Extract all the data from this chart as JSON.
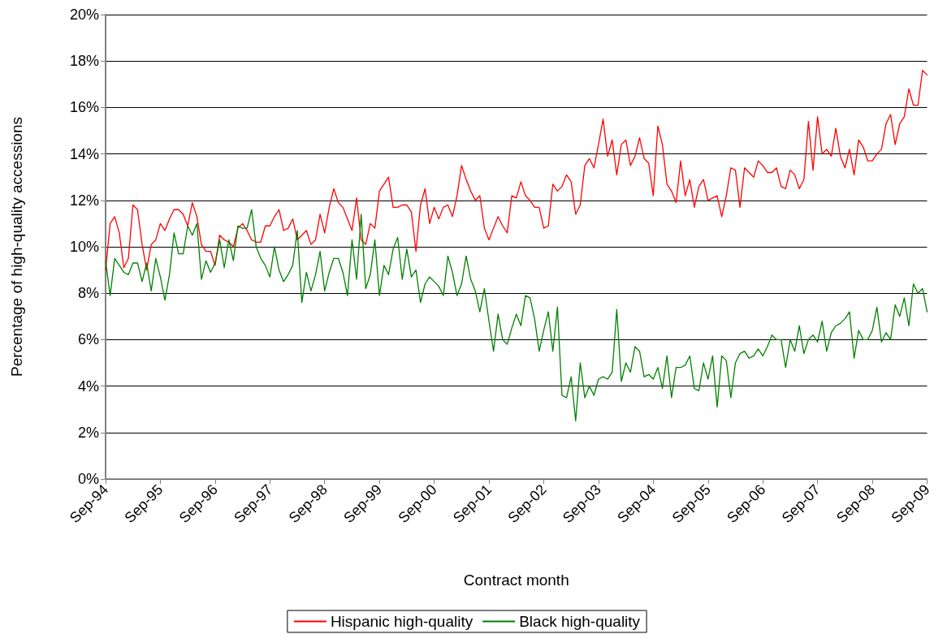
{
  "chart_data": {
    "type": "line",
    "xlabel": "Contract month",
    "ylabel": "Percentage of high-quality accessions",
    "categories": [
      "Sep-94",
      null,
      null,
      null,
      null,
      null,
      null,
      null,
      null,
      null,
      null,
      null,
      "Sep-95",
      null,
      null,
      null,
      null,
      null,
      null,
      null,
      null,
      null,
      null,
      null,
      "Sep-96",
      null,
      null,
      null,
      null,
      null,
      null,
      null,
      null,
      null,
      null,
      null,
      "Sep-97",
      null,
      null,
      null,
      null,
      null,
      null,
      null,
      null,
      null,
      null,
      null,
      "Sep-98",
      null,
      null,
      null,
      null,
      null,
      null,
      null,
      null,
      null,
      null,
      null,
      "Sep-99",
      null,
      null,
      null,
      null,
      null,
      null,
      null,
      null,
      null,
      null,
      null,
      "Sep-00",
      null,
      null,
      null,
      null,
      null,
      null,
      null,
      null,
      null,
      null,
      null,
      "Sep-01",
      null,
      null,
      null,
      null,
      null,
      null,
      null,
      null,
      null,
      null,
      null,
      "Sep-02",
      null,
      null,
      null,
      null,
      null,
      null,
      null,
      null,
      null,
      null,
      null,
      "Sep-03",
      null,
      null,
      null,
      null,
      null,
      null,
      null,
      null,
      null,
      null,
      null,
      "Sep-04",
      null,
      null,
      null,
      null,
      null,
      null,
      null,
      null,
      null,
      null,
      null,
      "Sep-05",
      null,
      null,
      null,
      null,
      null,
      null,
      null,
      null,
      null,
      null,
      null,
      "Sep-06",
      null,
      null,
      null,
      null,
      null,
      null,
      null,
      null,
      null,
      null,
      null,
      "Sep-07",
      null,
      null,
      null,
      null,
      null,
      null,
      null,
      null,
      null,
      null,
      null,
      "Sep-08",
      null,
      null,
      null,
      null,
      null,
      null,
      null,
      null,
      null,
      null,
      null,
      "Sep-09"
    ],
    "series": [
      {
        "name": "Hispanic high-quality",
        "color": "#ff0000",
        "values": [
          9.0,
          11.0,
          11.3,
          10.6,
          9.1,
          9.5,
          11.8,
          11.6,
          10.1,
          9.0,
          10.1,
          10.3,
          11.0,
          10.7,
          11.2,
          11.6,
          11.6,
          11.4,
          10.9,
          11.9,
          11.3,
          10.1,
          9.8,
          9.8,
          9.2,
          10.5,
          10.3,
          10.2,
          10.0,
          10.8,
          11.0,
          10.7,
          10.3,
          10.2,
          10.2,
          10.9,
          10.9,
          11.3,
          11.6,
          10.7,
          10.8,
          11.2,
          10.3,
          10.5,
          10.7,
          10.1,
          10.3,
          11.4,
          10.6,
          11.7,
          12.5,
          11.9,
          11.7,
          11.2,
          10.7,
          12.1,
          10.3,
          10.1,
          11.0,
          10.8,
          12.4,
          12.7,
          13.0,
          11.7,
          11.7,
          11.8,
          11.8,
          11.5,
          9.8,
          11.8,
          12.5,
          11.0,
          11.7,
          11.2,
          11.7,
          11.8,
          11.3,
          12.2,
          13.5,
          12.9,
          12.4,
          12.0,
          12.2,
          10.8,
          10.3,
          10.8,
          11.3,
          10.9,
          10.6,
          12.2,
          12.1,
          12.8,
          12.2,
          12.0,
          11.7,
          11.7,
          10.8,
          10.9,
          12.7,
          12.4,
          12.6,
          13.1,
          12.8,
          11.4,
          11.8,
          13.5,
          13.8,
          13.4,
          14.4,
          15.5,
          13.9,
          14.6,
          13.1,
          14.4,
          14.6,
          13.5,
          13.9,
          14.7,
          13.8,
          13.6,
          12.2,
          15.2,
          14.4,
          12.7,
          12.4,
          11.9,
          13.7,
          12.2,
          12.9,
          11.7,
          12.6,
          12.9,
          12.0,
          12.1,
          12.2,
          11.3,
          12.2,
          13.4,
          13.3,
          11.7,
          13.4,
          13.2,
          13.0,
          13.7,
          13.5,
          13.2,
          13.2,
          13.4,
          12.6,
          12.5,
          13.3,
          13.1,
          12.5,
          12.9,
          15.4,
          13.3,
          15.6,
          14.0,
          14.2,
          13.9,
          15.1,
          13.9,
          13.4,
          14.2,
          13.1,
          14.6,
          14.3,
          13.7,
          13.7,
          14.0,
          14.2,
          15.3,
          15.7,
          14.4,
          15.3,
          15.6,
          16.8,
          16.1,
          16.1,
          17.6,
          17.4
        ]
      },
      {
        "name": "Black high-quality",
        "color": "#008000",
        "values": [
          9.4,
          7.9,
          9.5,
          9.2,
          8.9,
          8.8,
          9.3,
          9.3,
          8.5,
          9.3,
          8.1,
          9.5,
          8.7,
          7.7,
          8.8,
          10.6,
          9.7,
          9.7,
          10.9,
          10.5,
          11.0,
          8.6,
          9.4,
          8.9,
          9.3,
          10.3,
          9.1,
          10.3,
          9.4,
          10.9,
          10.8,
          10.8,
          11.6,
          10.0,
          9.5,
          9.2,
          8.7,
          10.0,
          9.0,
          8.5,
          8.8,
          9.2,
          10.7,
          7.6,
          8.9,
          8.1,
          8.8,
          9.8,
          8.1,
          8.9,
          9.5,
          9.5,
          8.9,
          7.9,
          10.3,
          8.6,
          11.4,
          8.2,
          8.8,
          10.3,
          7.9,
          9.2,
          8.8,
          9.9,
          10.4,
          8.6,
          9.9,
          8.7,
          9.0,
          7.6,
          8.4,
          8.7,
          8.5,
          8.3,
          7.9,
          9.6,
          8.9,
          7.9,
          8.4,
          9.6,
          8.6,
          8.1,
          7.2,
          8.2,
          6.8,
          5.5,
          7.1,
          6.0,
          5.8,
          6.5,
          7.1,
          6.6,
          7.9,
          7.8,
          6.9,
          5.5,
          6.4,
          7.2,
          5.5,
          7.4,
          3.6,
          3.5,
          4.4,
          2.5,
          5.0,
          3.5,
          4.0,
          3.6,
          4.3,
          4.4,
          4.3,
          4.6,
          7.3,
          4.2,
          5.0,
          4.6,
          5.7,
          5.5,
          4.4,
          4.5,
          4.3,
          4.8,
          3.9,
          5.3,
          3.5,
          4.8,
          4.8,
          4.9,
          5.3,
          3.9,
          3.8,
          5.0,
          4.3,
          5.3,
          3.1,
          5.3,
          5.1,
          3.5,
          5.0,
          5.4,
          5.5,
          5.2,
          5.3,
          5.6,
          5.3,
          5.7,
          6.2,
          6.0,
          6.0,
          4.8,
          6.0,
          5.5,
          6.6,
          5.4,
          6.0,
          6.2,
          5.9,
          6.8,
          5.5,
          6.3,
          6.6,
          6.7,
          6.9,
          7.2,
          5.2,
          6.4,
          6.0,
          6.0,
          6.4,
          7.4,
          5.9,
          6.3,
          6.0,
          7.5,
          7.0,
          7.8,
          6.6,
          8.4,
          8.0,
          8.2,
          7.2
        ]
      }
    ],
    "ylim": [
      0,
      20
    ],
    "yticks": [
      {
        "value": 0,
        "label": "0%"
      },
      {
        "value": 2,
        "label": "2%"
      },
      {
        "value": 4,
        "label": "4%"
      },
      {
        "value": 6,
        "label": "6%"
      },
      {
        "value": 8,
        "label": "8%"
      },
      {
        "value": 10,
        "label": "10%"
      },
      {
        "value": 12,
        "label": "12%"
      },
      {
        "value": 14,
        "label": "14%"
      },
      {
        "value": 16,
        "label": "16%"
      },
      {
        "value": 18,
        "label": "18%"
      },
      {
        "value": 20,
        "label": "20%"
      }
    ],
    "grid": "y",
    "legend": "bottom"
  }
}
